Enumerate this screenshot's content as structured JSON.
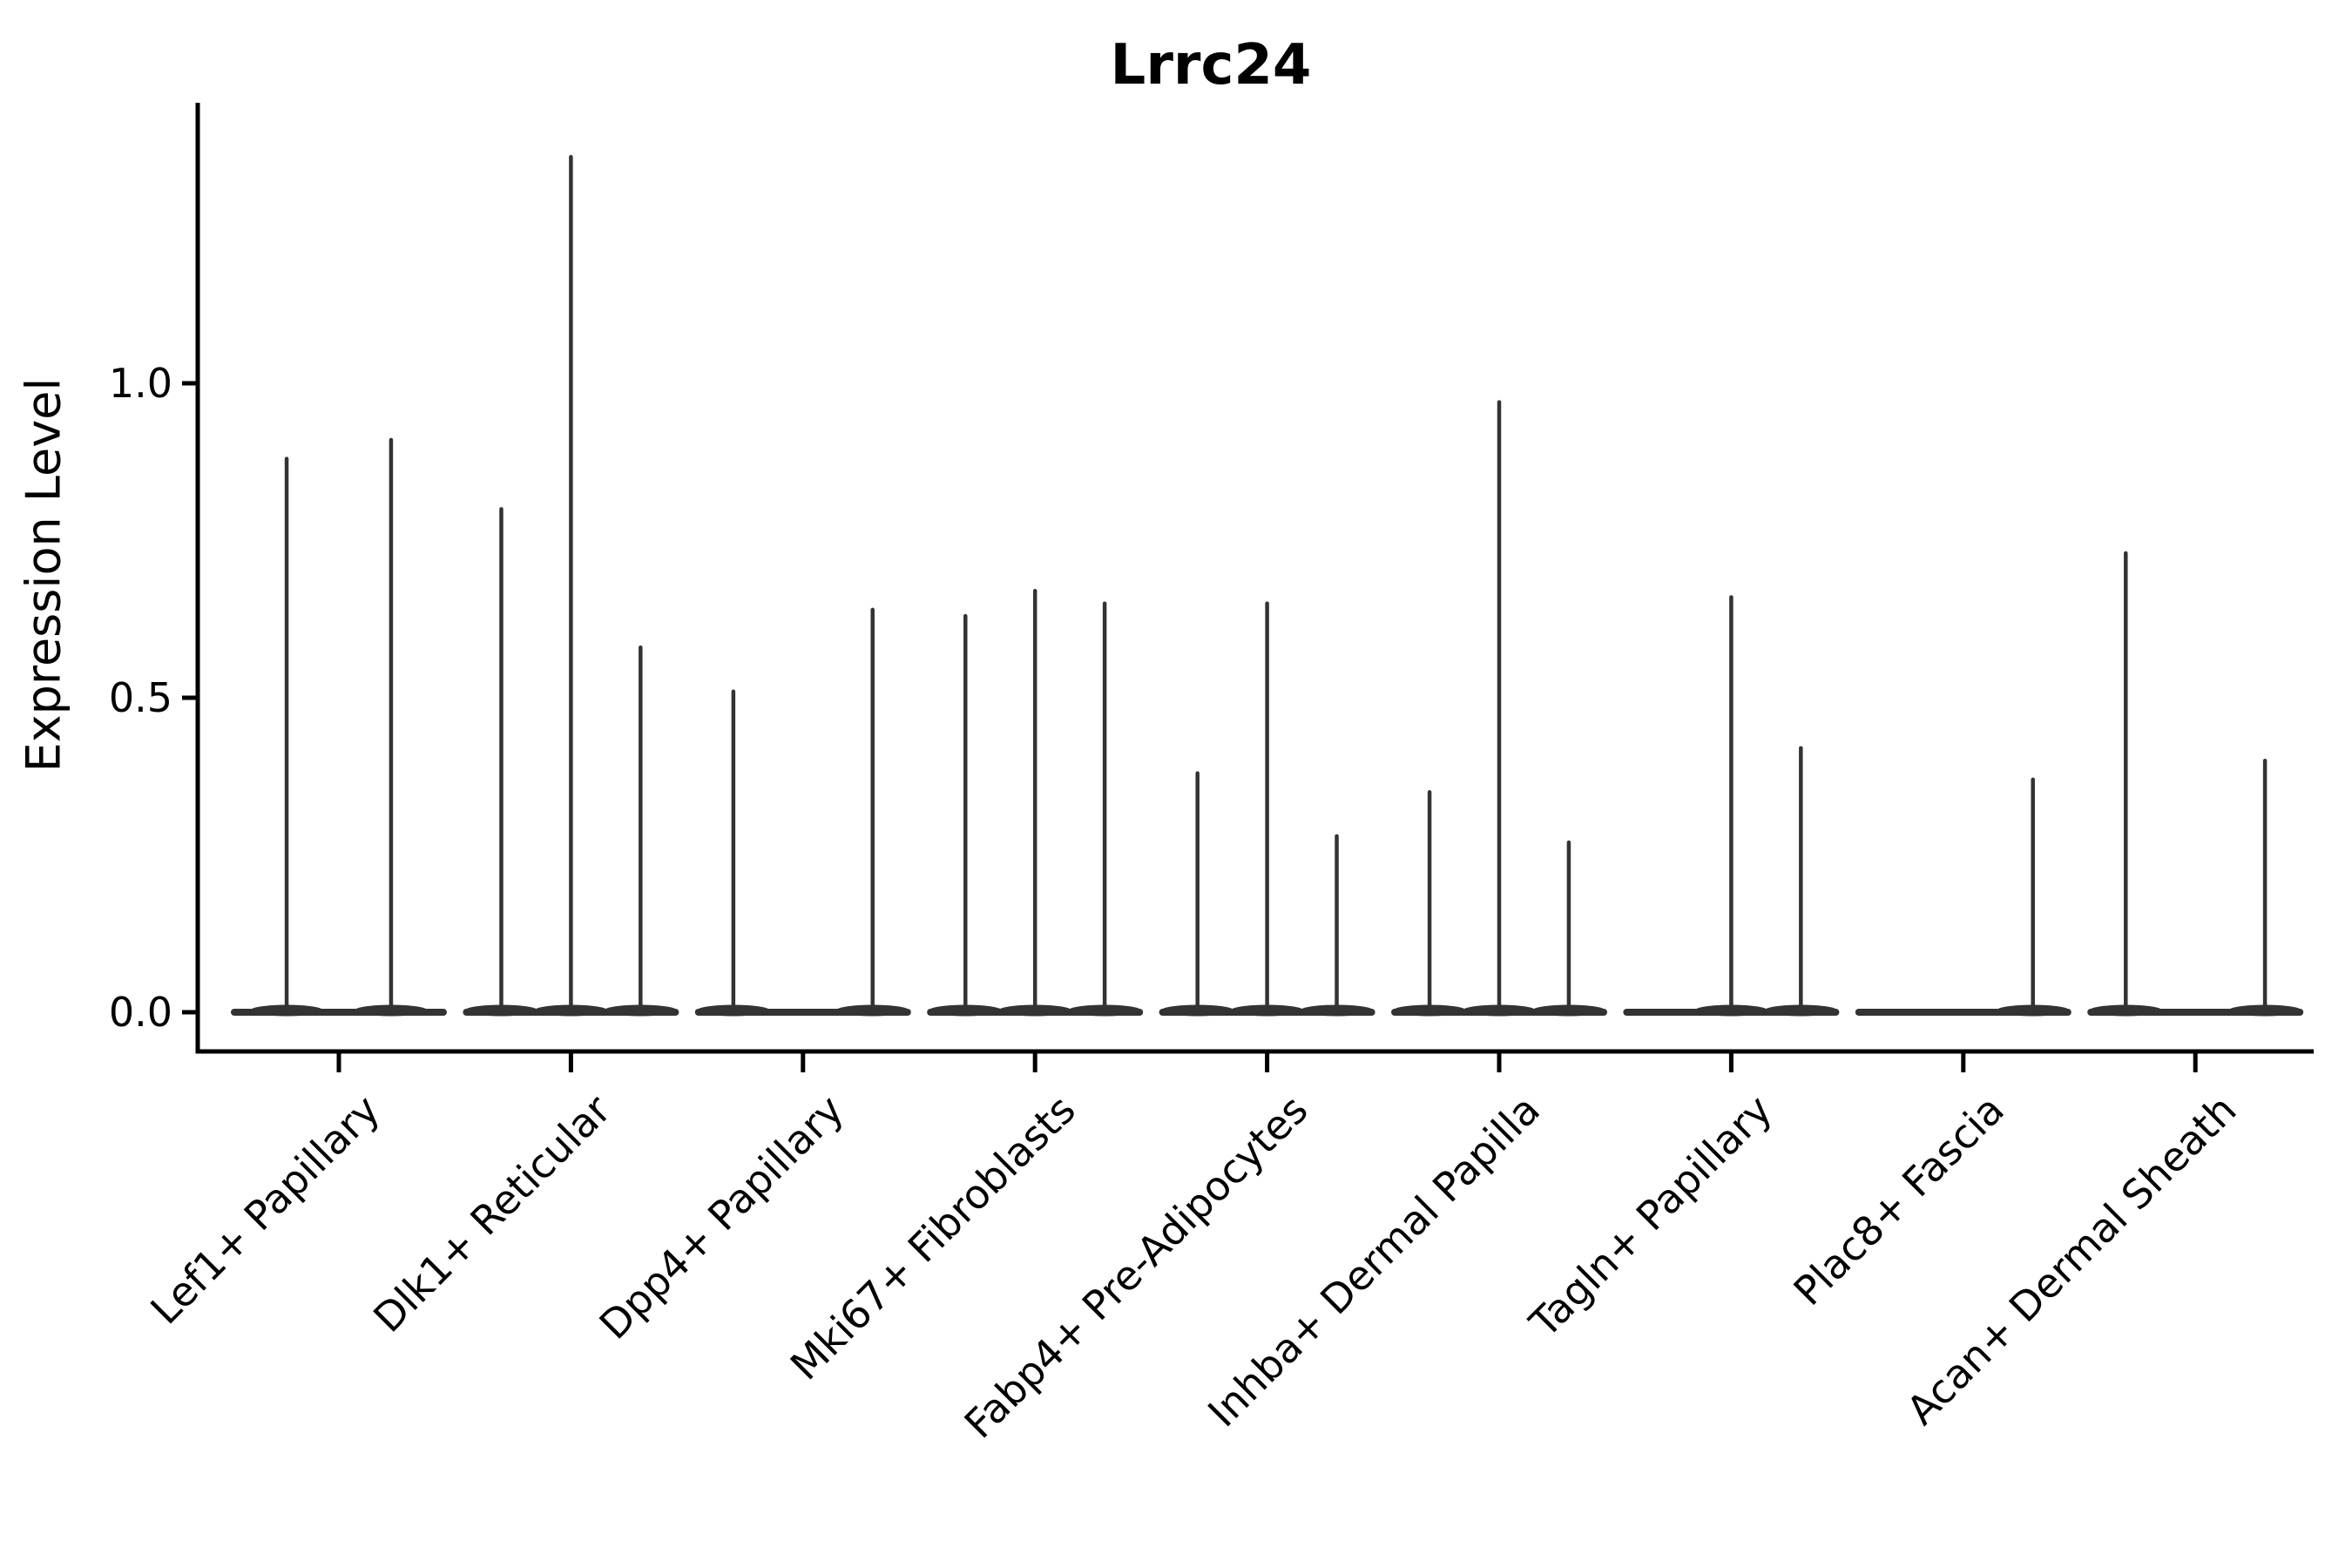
{
  "title": "Lrrc24",
  "y_axis": {
    "label": "Expression Level",
    "ticks": [
      "0.0",
      "0.5",
      "1.0"
    ],
    "tick_values": [
      0.0,
      0.5,
      1.0
    ]
  },
  "chart_data": {
    "type": "violin",
    "title": "Lrrc24",
    "ylabel": "Expression Level",
    "xlabel": "",
    "ylim": [
      -0.06,
      1.45
    ],
    "grid": false,
    "legend": false,
    "categories": [
      "Lef1+ Papillary",
      "Dlk1+ Reticular",
      "Dpp4+ Papillary",
      "Mki67+ Fibroblasts",
      "Fabp4+ Pre-Adipocytes",
      "Inhba+ Dermal Papilla",
      "Tagln+ Papillary",
      "Plac8+ Fascia",
      "Acan+ Dermal Sheath"
    ],
    "groups": [
      {
        "violins": [
          {
            "offset": -0.225,
            "peak": 0.88
          },
          {
            "offset": 0.225,
            "peak": 0.91
          }
        ]
      },
      {
        "violins": [
          {
            "offset": -0.3,
            "peak": 0.8
          },
          {
            "offset": 0,
            "peak": 1.36
          },
          {
            "offset": 0.3,
            "peak": 0.58
          }
        ]
      },
      {
        "violins": [
          {
            "offset": -0.3,
            "peak": 0.51
          },
          {
            "offset": 0,
            "peak": null
          },
          {
            "offset": 0.3,
            "peak": 0.64
          }
        ]
      },
      {
        "violins": [
          {
            "offset": -0.3,
            "peak": 0.63
          },
          {
            "offset": 0,
            "peak": 0.67
          },
          {
            "offset": 0.3,
            "peak": 0.65
          }
        ]
      },
      {
        "violins": [
          {
            "offset": -0.3,
            "peak": 0.38
          },
          {
            "offset": 0,
            "peak": 0.65
          },
          {
            "offset": 0.3,
            "peak": 0.28
          }
        ]
      },
      {
        "violins": [
          {
            "offset": -0.3,
            "peak": 0.35
          },
          {
            "offset": 0,
            "peak": 0.97
          },
          {
            "offset": 0.3,
            "peak": 0.27
          }
        ]
      },
      {
        "violins": [
          {
            "offset": -0.3,
            "peak": null
          },
          {
            "offset": 0,
            "peak": 0.66
          },
          {
            "offset": 0.3,
            "peak": 0.42
          }
        ]
      },
      {
        "violins": [
          {
            "offset": -0.3,
            "peak": null
          },
          {
            "offset": 0,
            "peak": null
          },
          {
            "offset": 0.3,
            "peak": 0.37
          }
        ]
      },
      {
        "violins": [
          {
            "offset": -0.3,
            "peak": 0.73
          },
          {
            "offset": 0,
            "peak": null
          },
          {
            "offset": 0.3,
            "peak": 0.4
          }
        ]
      }
    ],
    "baseline_value": 0.0
  },
  "colors": {
    "violin_line": "#333333",
    "axis": "#000000",
    "text": "#000000",
    "background": "#ffffff"
  }
}
